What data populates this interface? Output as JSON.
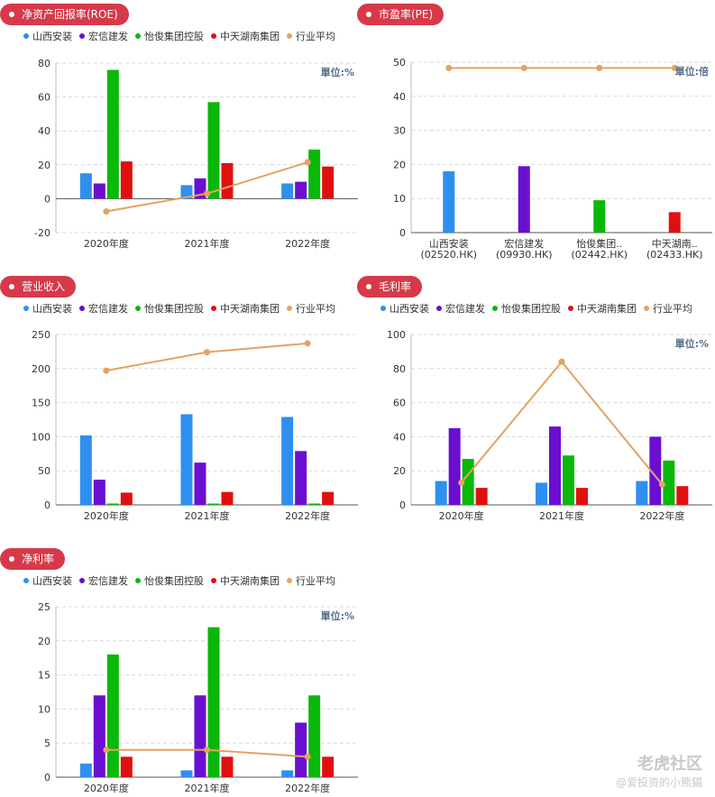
{
  "legend_series": [
    {
      "name": "山西安装",
      "color": "#2e8ff0"
    },
    {
      "name": "宏信建发",
      "color": "#6a0fd0"
    },
    {
      "name": "怡俊集团控股",
      "color": "#0ab80a"
    },
    {
      "name": "中天湖南集团",
      "color": "#e01010"
    },
    {
      "name": "行业平均",
      "color": "#e3a263"
    }
  ],
  "watermark": {
    "brand": "老虎社区",
    "author": "@爱投资的小熊猫"
  },
  "chart_data": [
    {
      "id": "roe",
      "type": "bar",
      "title": "净资产回报率(ROE)",
      "unit": "單位:%",
      "categories": [
        "2020年度",
        "2021年度",
        "2022年度"
      ],
      "ylim": [
        -20,
        80
      ],
      "yticks": [
        -20,
        0,
        20,
        40,
        60,
        80
      ],
      "series": [
        {
          "name": "山西安装",
          "values": [
            15,
            8,
            9
          ]
        },
        {
          "name": "宏信建发",
          "values": [
            9,
            12,
            10
          ]
        },
        {
          "name": "怡俊集团控股",
          "values": [
            76,
            57,
            29
          ]
        },
        {
          "name": "中天湖南集团",
          "values": [
            22,
            21,
            19
          ]
        }
      ],
      "line": {
        "name": "行业平均",
        "values": [
          -7.5,
          3,
          21.5
        ]
      }
    },
    {
      "id": "pe",
      "type": "bar",
      "title": "市盈率(PE)",
      "unit": "單位:倍",
      "categories": [
        "山西安装\n(02520.HK)",
        "宏信建发\n(09930.HK)",
        "怡俊集团..\n(02442.HK)",
        "中天湖南..\n(02433.HK)"
      ],
      "ylim": [
        0,
        50
      ],
      "yticks": [
        0,
        10,
        20,
        30,
        40,
        50
      ],
      "values": [
        18,
        19.5,
        9.5,
        6
      ],
      "line": {
        "name": "行业平均",
        "values": [
          48.3,
          48.3,
          48.3,
          48.3
        ]
      }
    },
    {
      "id": "revenue",
      "type": "bar",
      "title": "营业收入",
      "unit": "",
      "categories": [
        "2020年度",
        "2021年度",
        "2022年度"
      ],
      "ylim": [
        0,
        250
      ],
      "yticks": [
        0,
        50,
        100,
        150,
        200,
        250
      ],
      "series": [
        {
          "name": "山西安装",
          "values": [
            102,
            133,
            129
          ]
        },
        {
          "name": "宏信建发",
          "values": [
            37,
            62,
            79
          ]
        },
        {
          "name": "怡俊集团控股",
          "values": [
            2,
            2,
            2
          ]
        },
        {
          "name": "中天湖南集团",
          "values": [
            18,
            19,
            19
          ]
        }
      ],
      "line": {
        "name": "行业平均",
        "values": [
          197,
          224,
          237
        ]
      }
    },
    {
      "id": "gross",
      "type": "bar",
      "title": "毛利率",
      "unit": "單位:%",
      "categories": [
        "2020年度",
        "2021年度",
        "2022年度"
      ],
      "ylim": [
        0,
        100
      ],
      "yticks": [
        0,
        20,
        40,
        60,
        80,
        100
      ],
      "series": [
        {
          "name": "山西安装",
          "values": [
            14,
            13,
            14
          ]
        },
        {
          "name": "宏信建发",
          "values": [
            45,
            46,
            40
          ]
        },
        {
          "name": "怡俊集团控股",
          "values": [
            27,
            29,
            26
          ]
        },
        {
          "name": "中天湖南集团",
          "values": [
            10,
            10,
            11
          ]
        }
      ],
      "line": {
        "name": "行业平均",
        "values": [
          13,
          84,
          12
        ]
      }
    },
    {
      "id": "net",
      "type": "bar",
      "title": "净利率",
      "unit": "單位:%",
      "categories": [
        "2020年度",
        "2021年度",
        "2022年度"
      ],
      "ylim": [
        0,
        25
      ],
      "yticks": [
        0,
        5,
        10,
        15,
        20,
        25
      ],
      "series": [
        {
          "name": "山西安装",
          "values": [
            2,
            1,
            1
          ]
        },
        {
          "name": "宏信建发",
          "values": [
            12,
            12,
            8
          ]
        },
        {
          "name": "怡俊集团控股",
          "values": [
            18,
            22,
            12
          ]
        },
        {
          "name": "中天湖南集团",
          "values": [
            3,
            3,
            3
          ]
        }
      ],
      "line": {
        "name": "行业平均",
        "values": [
          4,
          4,
          3
        ]
      }
    }
  ]
}
